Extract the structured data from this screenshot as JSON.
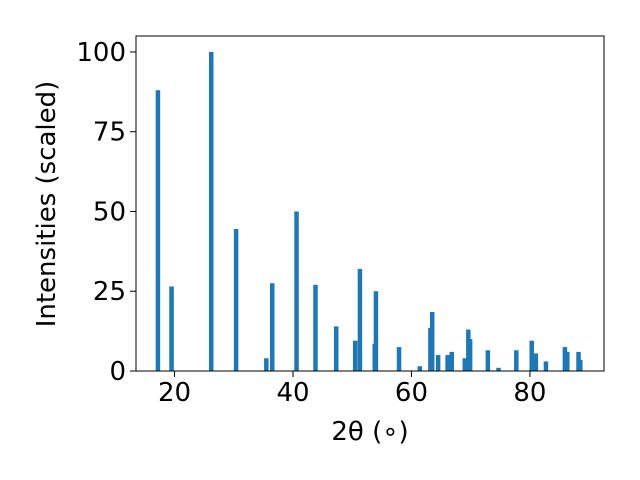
{
  "chart_data": {
    "type": "bar",
    "title": "",
    "xlabel": "2θ (∘)",
    "ylabel": "Intensities (scaled)",
    "xlim": [
      13.5,
      92.5
    ],
    "ylim": [
      0,
      105
    ],
    "xticks": [
      20,
      40,
      60,
      80
    ],
    "yticks": [
      0,
      25,
      50,
      75,
      100
    ],
    "grid": false,
    "bar_color": "#1f77b4",
    "series": [
      {
        "x": [
          17.2,
          19.5,
          26.2,
          30.4,
          35.5,
          36.5,
          40.6,
          43.8,
          47.3,
          50.5,
          51.3,
          53.8,
          54.0,
          57.9,
          61.4,
          63.2,
          63.5,
          64.5,
          66.1,
          66.8,
          69.0,
          69.6,
          69.9,
          72.9,
          74.7,
          77.7,
          80.3,
          81.0,
          82.7,
          85.9,
          86.3,
          88.2,
          88.5
        ],
        "values": [
          88,
          26.5,
          100,
          44.5,
          4,
          27.5,
          50,
          27,
          14,
          9.5,
          32,
          8.5,
          25,
          7.5,
          1.5,
          13.5,
          18.5,
          5,
          5,
          6,
          4,
          13,
          10,
          6.5,
          1,
          6.5,
          9.5,
          5.5,
          3,
          7.5,
          6,
          6,
          3.5
        ]
      }
    ]
  }
}
